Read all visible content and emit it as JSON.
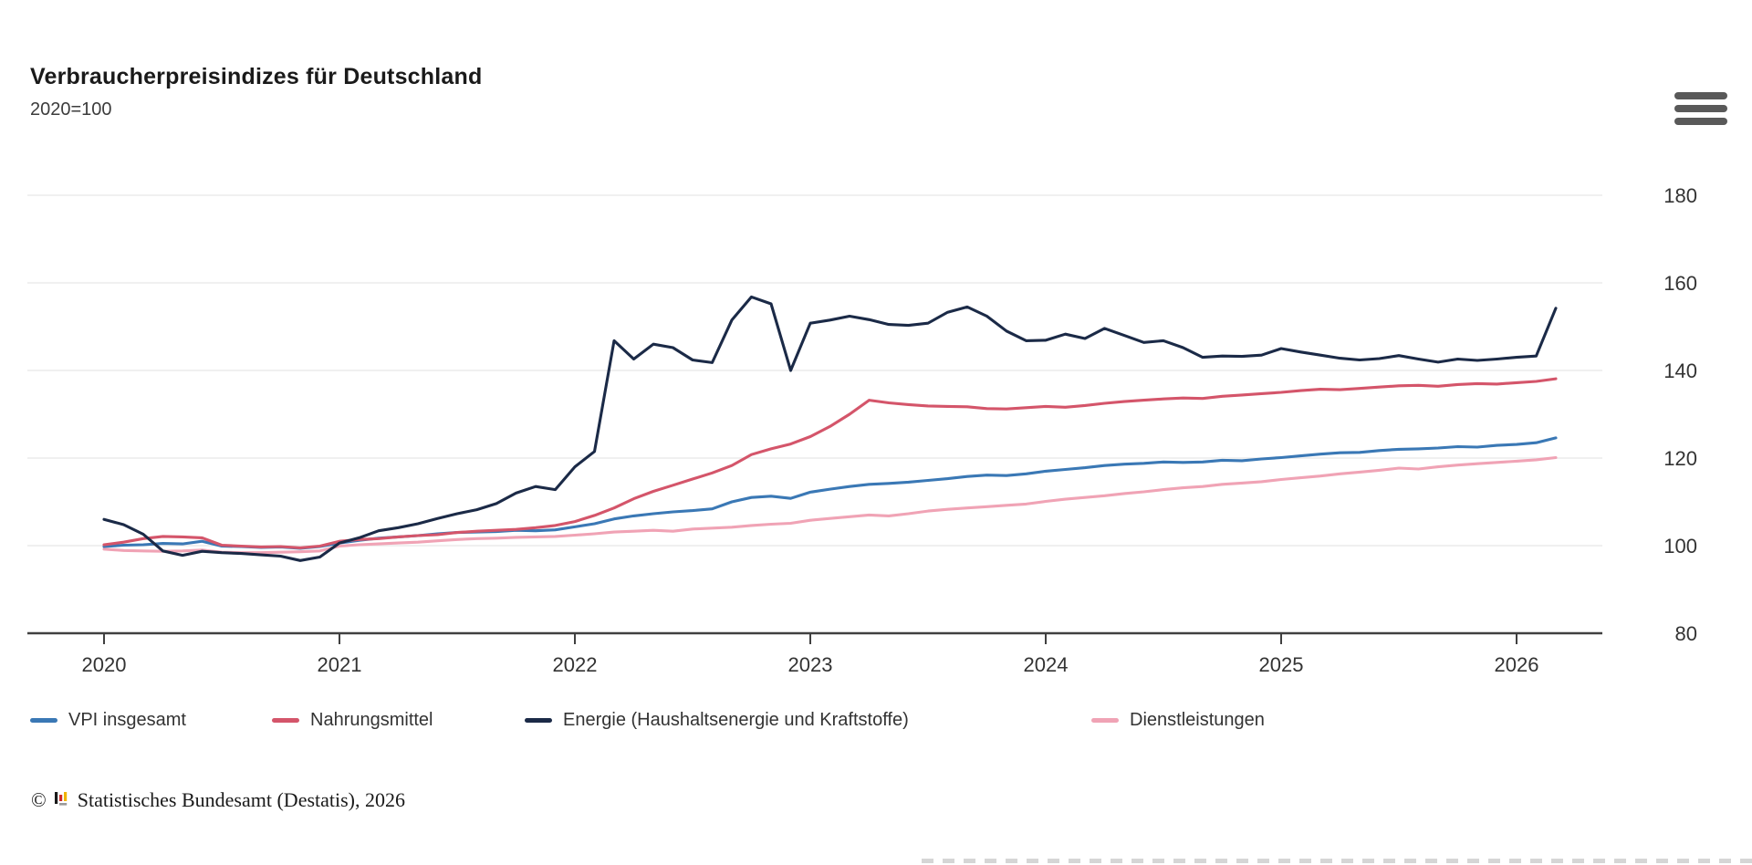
{
  "header": {
    "title": "Verbraucherpreisindizes für Deutschland",
    "subtitle": "2020=100"
  },
  "icons": {
    "menu_icon": "hamburger-menu",
    "footer_logo_icon": "destatis-bar-chart"
  },
  "footer": {
    "copyright_symbol": "©",
    "text": "Statistisches Bundesamt (Destatis), 2026"
  },
  "chart_data": {
    "type": "line",
    "title": "Verbraucherpreisindizes für Deutschland",
    "subtitle": "2020=100",
    "x_unit": "month",
    "x_start": "2020-01",
    "x_end": "2026-03",
    "x_tick_labels": [
      "2020",
      "2021",
      "2022",
      "2023",
      "2024",
      "2025",
      "2026"
    ],
    "y_ticks": [
      80,
      100,
      120,
      140,
      160,
      180
    ],
    "ylim": [
      80,
      190
    ],
    "grid": true,
    "y_axis_side": "right",
    "legend_position": "bottom",
    "series": [
      {
        "name": "VPI insgesamt",
        "color": "#3a78b5",
        "values": [
          99.8,
          100.1,
          100.2,
          100.5,
          100.4,
          101.0,
          99.9,
          99.8,
          99.6,
          99.7,
          99.4,
          99.8,
          100.6,
          101.2,
          101.7,
          102.0,
          102.3,
          102.7,
          103.0,
          103.1,
          103.2,
          103.5,
          103.4,
          103.6,
          104.3,
          105.0,
          106.1,
          106.8,
          107.3,
          107.7,
          108.0,
          108.4,
          110.0,
          111.0,
          111.3,
          110.8,
          112.2,
          112.9,
          113.5,
          114.0,
          114.2,
          114.5,
          114.9,
          115.3,
          115.8,
          116.1,
          116.0,
          116.4,
          117.0,
          117.4,
          117.8,
          118.3,
          118.6,
          118.8,
          119.1,
          119.0,
          119.1,
          119.5,
          119.4,
          119.8,
          120.1,
          120.5,
          120.9,
          121.2,
          121.3,
          121.7,
          122.0,
          122.1,
          122.3,
          122.6,
          122.5,
          122.9,
          123.1,
          123.5,
          124.6
        ]
      },
      {
        "name": "Nahrungsmittel",
        "color": "#d4556a",
        "values": [
          100.2,
          100.8,
          101.6,
          102.1,
          102.0,
          101.8,
          100.1,
          99.9,
          99.7,
          99.8,
          99.5,
          99.9,
          101.0,
          101.4,
          101.6,
          102.0,
          102.3,
          102.5,
          103.0,
          103.3,
          103.5,
          103.7,
          104.1,
          104.6,
          105.5,
          106.9,
          108.6,
          110.7,
          112.4,
          113.8,
          115.2,
          116.6,
          118.3,
          120.8,
          122.1,
          123.2,
          124.9,
          127.2,
          130.0,
          133.2,
          132.6,
          132.2,
          131.9,
          131.8,
          131.7,
          131.3,
          131.2,
          131.5,
          131.8,
          131.6,
          132.0,
          132.5,
          132.9,
          133.2,
          133.5,
          133.7,
          133.6,
          134.1,
          134.4,
          134.7,
          135.0,
          135.4,
          135.7,
          135.6,
          135.9,
          136.2,
          136.5,
          136.6,
          136.4,
          136.8,
          137.0,
          136.9,
          137.2,
          137.5,
          138.1
        ]
      },
      {
        "name": "Energie (Haushaltsenergie und Kraftstoffe)",
        "color": "#1b2a47",
        "values": [
          106.0,
          104.8,
          102.6,
          98.8,
          97.8,
          98.7,
          98.4,
          98.2,
          97.9,
          97.6,
          96.6,
          97.4,
          100.6,
          101.8,
          103.4,
          104.1,
          105.0,
          106.2,
          107.3,
          108.2,
          109.6,
          112.0,
          113.5,
          112.8,
          118.0,
          121.5,
          146.8,
          142.6,
          146.0,
          145.2,
          142.4,
          141.8,
          151.5,
          156.8,
          155.2,
          140.0,
          150.8,
          151.5,
          152.4,
          151.6,
          150.5,
          150.3,
          150.8,
          153.3,
          154.5,
          152.4,
          149.0,
          146.8,
          146.9,
          148.3,
          147.3,
          149.6,
          148.0,
          146.4,
          146.8,
          145.2,
          143.0,
          143.3,
          143.2,
          143.5,
          145.0,
          144.2,
          143.5,
          142.8,
          142.4,
          142.7,
          143.4,
          142.6,
          141.9,
          142.6,
          142.3,
          142.6,
          143.0,
          143.3,
          154.2
        ]
      },
      {
        "name": "Dienstleistungen",
        "color": "#f0a3b5",
        "values": [
          99.2,
          98.9,
          98.8,
          98.7,
          98.8,
          99.0,
          98.5,
          98.4,
          98.4,
          98.5,
          98.6,
          98.8,
          99.9,
          100.2,
          100.4,
          100.6,
          100.8,
          101.1,
          101.4,
          101.6,
          101.7,
          101.9,
          102.0,
          102.1,
          102.4,
          102.7,
          103.1,
          103.3,
          103.5,
          103.3,
          103.8,
          104.0,
          104.2,
          104.6,
          104.9,
          105.1,
          105.8,
          106.2,
          106.6,
          107.0,
          106.8,
          107.3,
          107.9,
          108.3,
          108.6,
          108.9,
          109.2,
          109.5,
          110.1,
          110.6,
          111.0,
          111.4,
          111.9,
          112.3,
          112.8,
          113.2,
          113.5,
          114.0,
          114.3,
          114.6,
          115.1,
          115.5,
          115.9,
          116.4,
          116.8,
          117.2,
          117.7,
          117.5,
          118.0,
          118.4,
          118.7,
          119.0,
          119.3,
          119.6,
          120.1
        ]
      }
    ]
  }
}
